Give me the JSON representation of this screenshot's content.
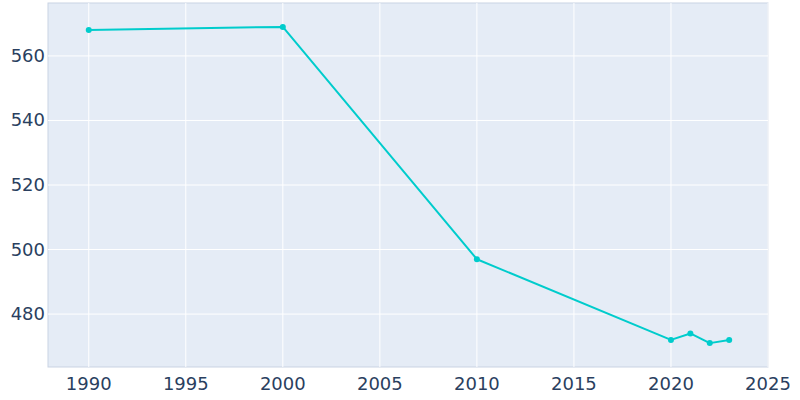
{
  "chart_data": {
    "type": "line",
    "x": [
      1990,
      2000,
      2010,
      2020,
      2021,
      2022,
      2023
    ],
    "values": [
      568,
      569,
      497,
      472,
      474,
      471,
      472
    ],
    "color": "#00cccc",
    "marker": "circle",
    "xlim": [
      1987.9,
      2025
    ],
    "xticks": [
      1990,
      1995,
      2000,
      2005,
      2010,
      2015,
      2020,
      2025
    ],
    "ylim": [
      463.6,
      576.4
    ],
    "yticks": [
      480,
      500,
      520,
      540,
      560
    ],
    "grid": true
  }
}
